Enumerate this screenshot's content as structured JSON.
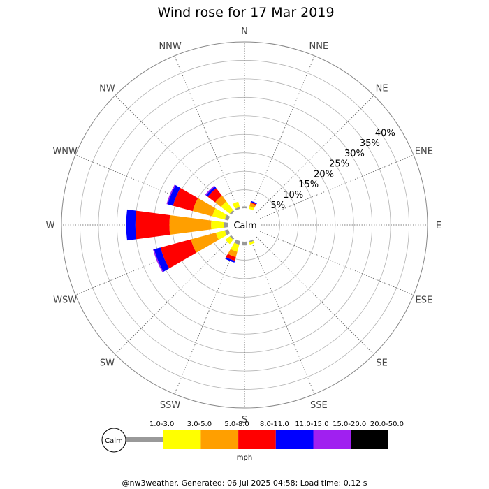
{
  "chart_data": {
    "type": "wind-rose",
    "title": "Wind rose for 17 Mar 2019",
    "directions": [
      "N",
      "NNE",
      "NE",
      "ENE",
      "E",
      "ESE",
      "SE",
      "SSE",
      "S",
      "SSW",
      "SW",
      "WSW",
      "W",
      "WNW",
      "NW",
      "NNW"
    ],
    "ring_percent_labels": [
      "5%",
      "10%",
      "15%",
      "20%",
      "25%",
      "30%",
      "35%",
      "40%"
    ],
    "ring_values": [
      5,
      10,
      15,
      20,
      25,
      30,
      35,
      40
    ],
    "r_max_percent": 45,
    "calm_label": "Calm",
    "units_label": "mph",
    "speed_bins": [
      {
        "label": "1.0-3.0",
        "color": "#999999"
      },
      {
        "label": "3.0-5.0",
        "color": "#ffff00"
      },
      {
        "label": "5.0-8.0",
        "color": "#ff9f00"
      },
      {
        "label": "8.0-11.0",
        "color": "#ff0000"
      },
      {
        "label": "11.0-15.0",
        "color": "#0000ff"
      },
      {
        "label": "15.0-20.0",
        "color": "#a020f0"
      },
      {
        "label": "20.0-50.0",
        "color": "#000000"
      }
    ],
    "series": [
      {
        "direction": "N",
        "values": [
          0.5,
          0,
          0,
          0,
          0,
          0,
          0
        ]
      },
      {
        "direction": "NNE",
        "values": [
          0,
          0.7,
          0.9,
          0.3,
          0.3,
          0,
          0
        ]
      },
      {
        "direction": "SSE",
        "values": [
          0.4,
          0.6,
          0,
          0,
          0,
          0,
          0
        ]
      },
      {
        "direction": "S",
        "values": [
          1.0,
          0,
          0,
          0,
          0,
          0,
          0
        ]
      },
      {
        "direction": "SSW",
        "values": [
          1.0,
          2.0,
          1.5,
          1.0,
          0.5,
          0,
          0
        ]
      },
      {
        "direction": "SW",
        "values": [
          0.5,
          1.5,
          0,
          0,
          0,
          0,
          0
        ]
      },
      {
        "direction": "WSW",
        "values": [
          1.0,
          2.5,
          7.0,
          8.5,
          1.8,
          0.3,
          0
        ]
      },
      {
        "direction": "W",
        "values": [
          1.0,
          3.5,
          11.3,
          9.2,
          2.5,
          0,
          0
        ]
      },
      {
        "direction": "WNW",
        "values": [
          1.0,
          3.5,
          5.5,
          5.5,
          1.5,
          0.3,
          0
        ]
      },
      {
        "direction": "NW",
        "values": [
          0.5,
          3.0,
          2.0,
          2.5,
          0.6,
          0.3,
          0
        ]
      },
      {
        "direction": "NNW",
        "values": [
          0.5,
          1.5,
          0,
          0,
          0,
          0,
          0
        ]
      }
    ]
  },
  "footer": "@nw3weather. Generated: 06 Jul 2025 04:58; Load time: 0.12 s"
}
